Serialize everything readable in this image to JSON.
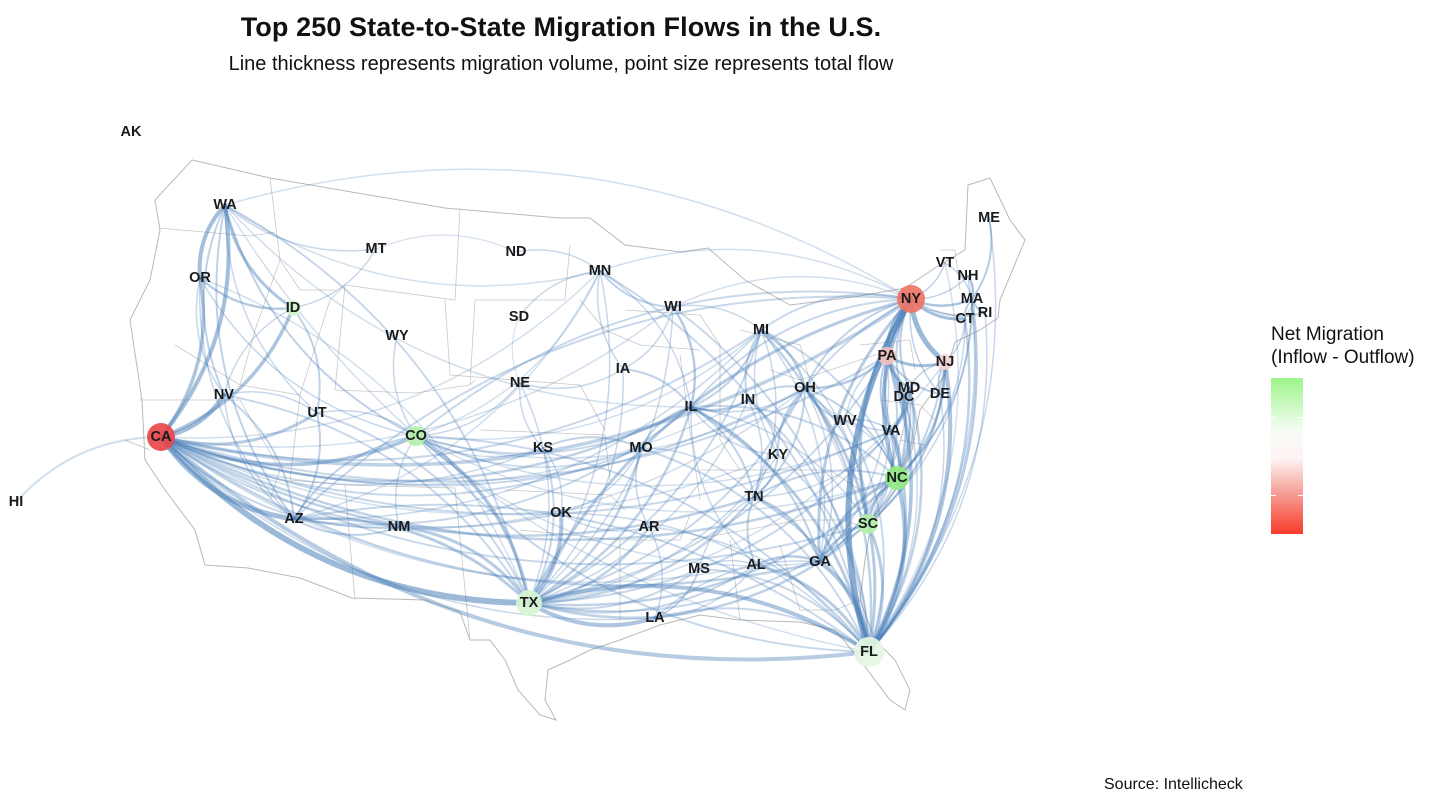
{
  "title": "Top 250 State-to-State Migration Flows in the U.S.",
  "subtitle": "Line thickness represents migration volume, point size represents total flow",
  "legend": {
    "title_line1": "Net Migration",
    "title_line2": "(Inflow - Outflow)",
    "colors": {
      "positive": "#9cf58b",
      "neutral": "#ffffff",
      "negative": "#f93a2a"
    }
  },
  "source": "Source: Intellicheck",
  "flow_color": "#4a7fb8",
  "states": {
    "AK": "AK",
    "HI": "HI",
    "WA": "WA",
    "OR": "OR",
    "CA": "CA",
    "ID": "ID",
    "NV": "NV",
    "MT": "MT",
    "WY": "WY",
    "UT": "UT",
    "AZ": "AZ",
    "CO": "CO",
    "NM": "NM",
    "ND": "ND",
    "SD": "SD",
    "NE": "NE",
    "KS": "KS",
    "OK": "OK",
    "TX": "TX",
    "MN": "MN",
    "IA": "IA",
    "MO": "MO",
    "AR": "AR",
    "LA": "LA",
    "WI": "WI",
    "IL": "IL",
    "MI": "MI",
    "IN": "IN",
    "OH": "OH",
    "KY": "KY",
    "TN": "TN",
    "MS": "MS",
    "AL": "AL",
    "GA": "GA",
    "FL": "FL",
    "SC": "SC",
    "NC": "NC",
    "VA": "VA",
    "WV": "WV",
    "DC": "DC",
    "MD": "MD",
    "DE": "DE",
    "PA": "PA",
    "NJ": "NJ",
    "NY": "NY",
    "CT": "CT",
    "RI": "RI",
    "MA": "MA",
    "VT": "VT",
    "NH": "NH",
    "ME": "ME"
  },
  "nodes": [
    {
      "state": "CA",
      "color": "#e8474a"
    },
    {
      "state": "NY",
      "color": "#ef7466"
    },
    {
      "state": "FL",
      "color": "#e4f7e2"
    },
    {
      "state": "TX",
      "color": "#d7f5d2"
    },
    {
      "state": "NC",
      "color": "#92ec84"
    },
    {
      "state": "SC",
      "color": "#b3f0a9"
    },
    {
      "state": "CO",
      "color": "#b3f0a9"
    },
    {
      "state": "PA",
      "color": "#f4c1bb"
    },
    {
      "state": "NJ",
      "color": "#f4d6d2"
    },
    {
      "state": "ID",
      "color": "#d4f5cd"
    }
  ]
}
